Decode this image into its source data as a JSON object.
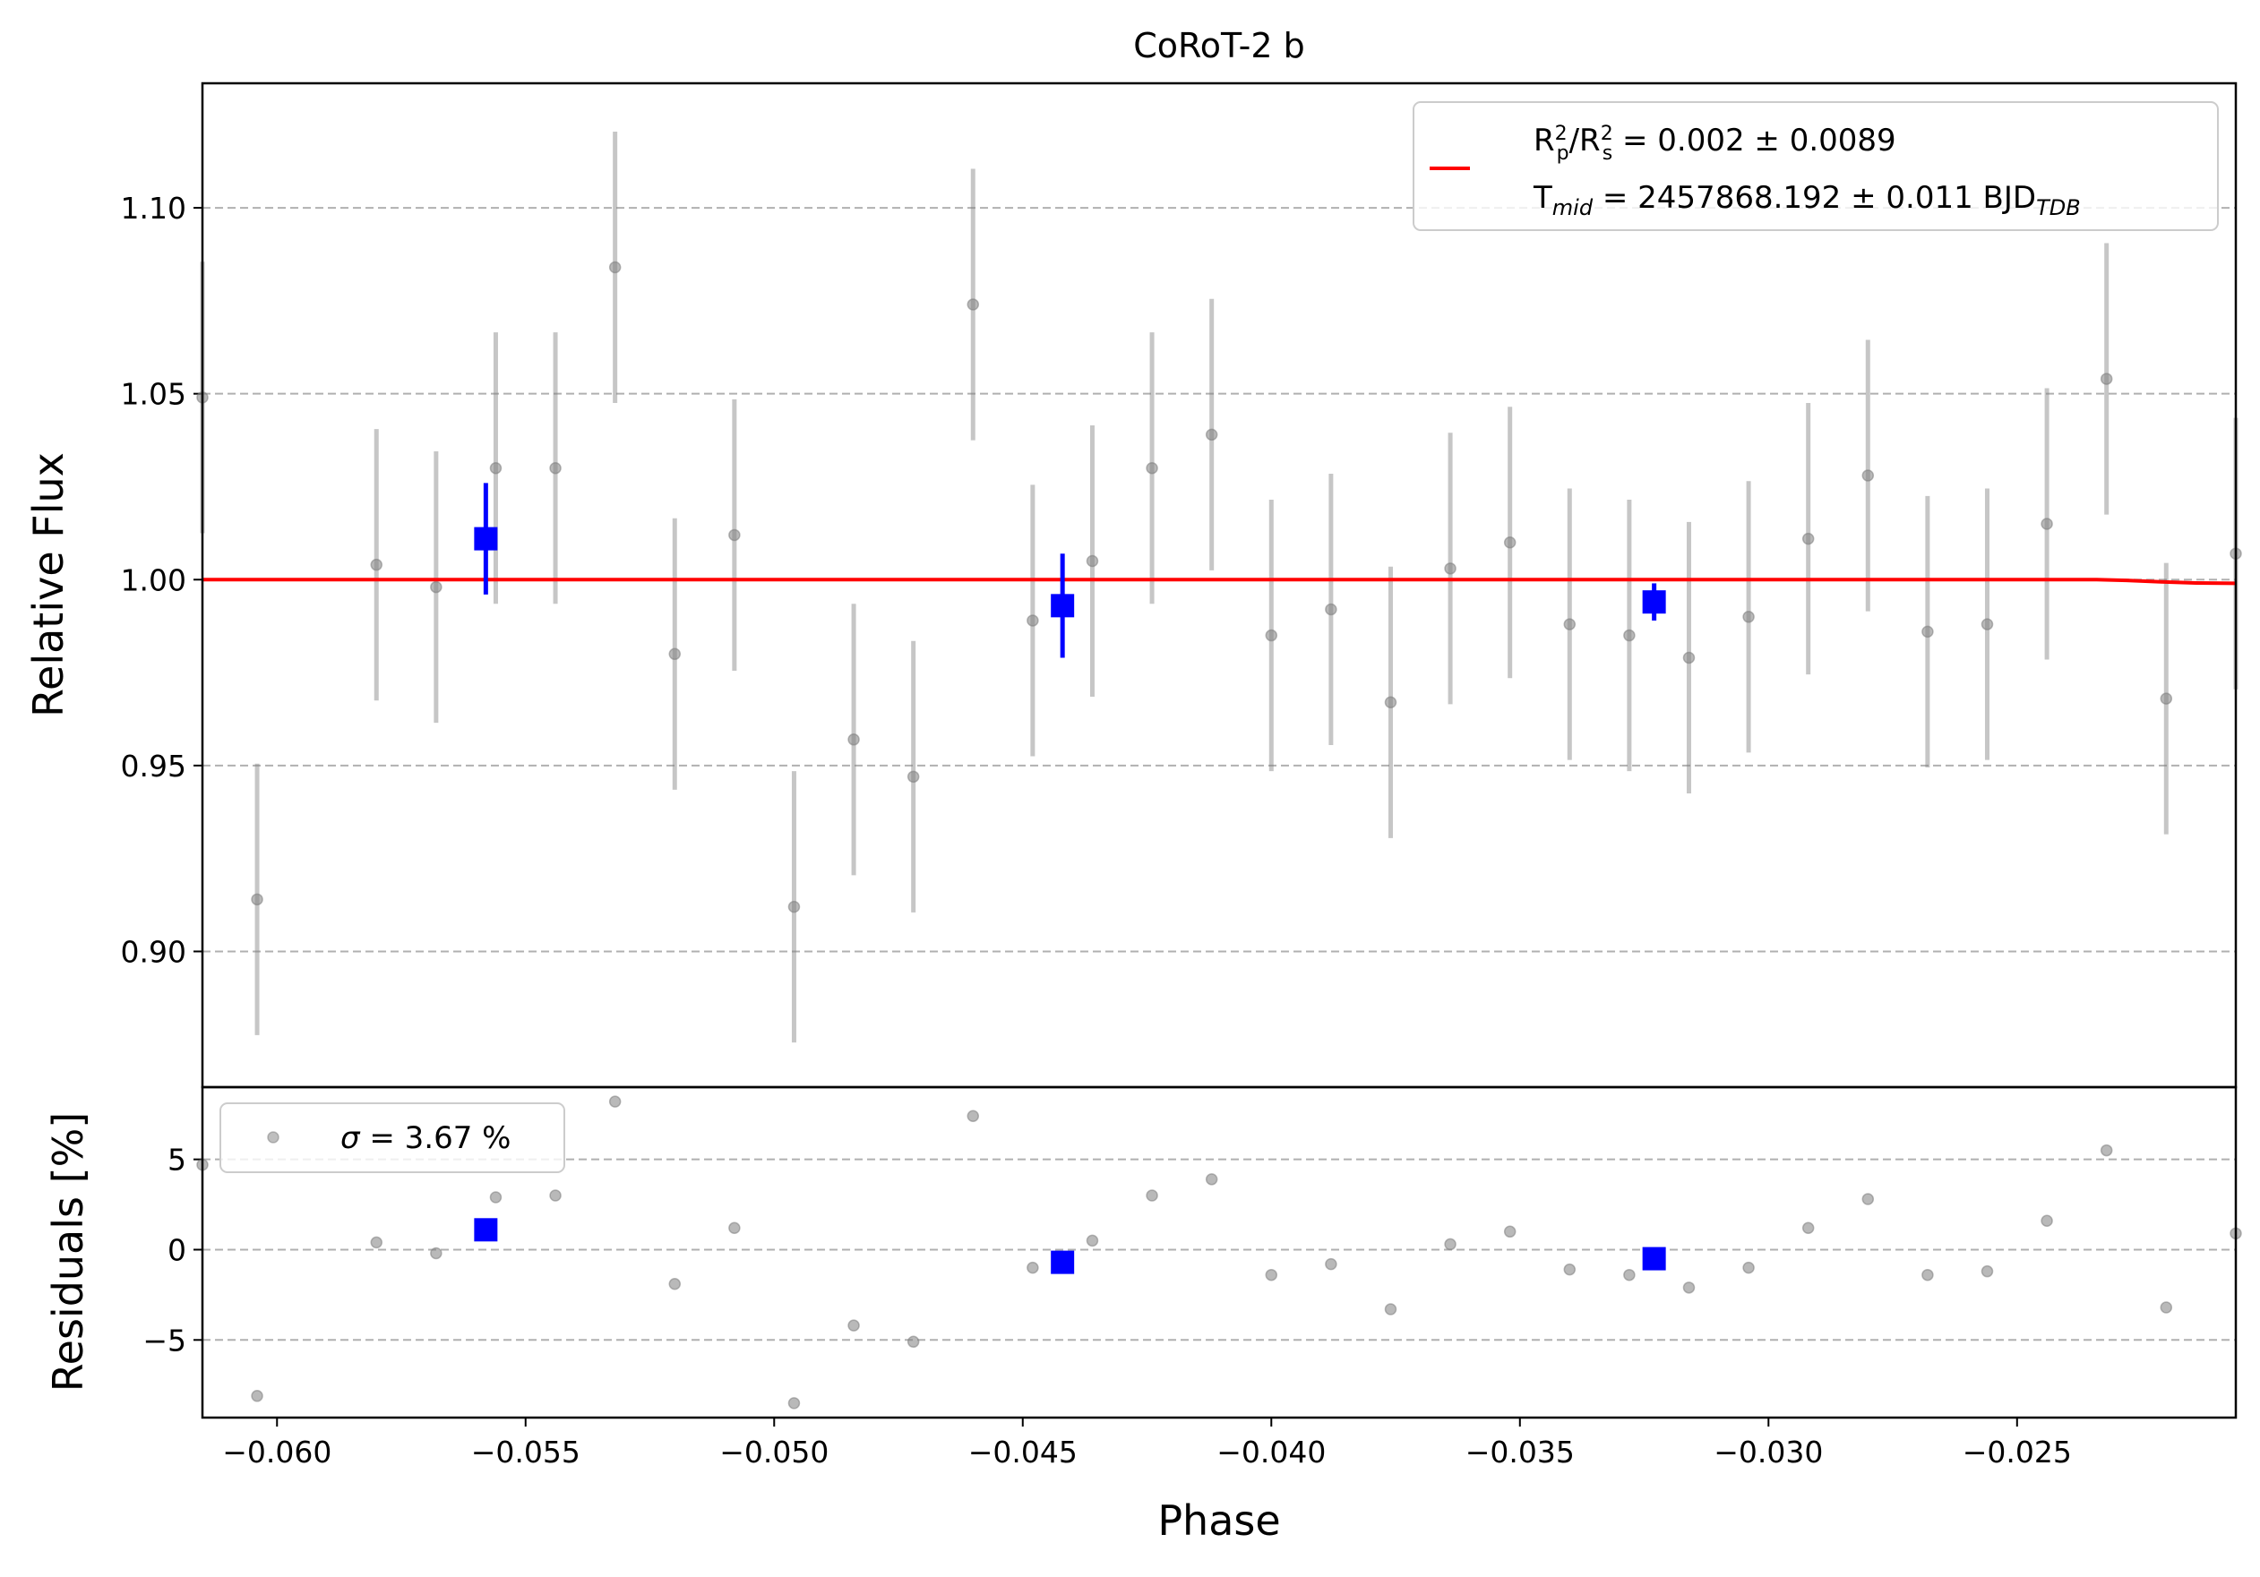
{
  "chart_data": {
    "type": "scatter",
    "title": "CoRoT-2 b",
    "xlabel": "Phase",
    "xlim": [
      -0.0615,
      -0.0206
    ],
    "x_ticks": [
      -0.06,
      -0.055,
      -0.05,
      -0.045,
      -0.04,
      -0.035,
      -0.03,
      -0.025
    ],
    "x_tick_labels": [
      "−0.060",
      "−0.055",
      "−0.050",
      "−0.045",
      "−0.040",
      "−0.035",
      "−0.030",
      "−0.025"
    ],
    "top_panel": {
      "ylabel": "Relative Flux",
      "ylim": [
        0.8635,
        1.1335
      ],
      "y_ticks": [
        0.9,
        0.95,
        1.0,
        1.05,
        1.1
      ],
      "y_tick_labels": [
        "0.90",
        "0.95",
        "1.00",
        "1.05",
        "1.10"
      ],
      "grid": "horizontal dashed",
      "legend": {
        "location": "upper right",
        "entries": [
          {
            "text_html": "R<tspan dy=\"-12\" font-size=\"22\">2</tspan><tspan dy=\"22\" dx=\"-12\" font-size=\"22\">p</tspan><tspan dy=\"-10\">/R</tspan><tspan dy=\"-12\" font-size=\"22\">2</tspan><tspan dy=\"22\" dx=\"-12\" font-size=\"22\">s</tspan><tspan dy=\"-10\"> = 0.002 ± 0.0089</tspan>"
          },
          {
            "text_html": "T<tspan dy=\"8\" font-size=\"24\" font-style=\"italic\">mid</tspan><tspan dy=\"-8\"> = 2457868.192 ± 0.011 BJD</tspan><tspan dy=\"8\" font-size=\"24\" font-style=\"italic\">TDB</tspan>"
          }
        ]
      },
      "model_line": {
        "color": "#ff0000",
        "x": [
          -0.0615,
          -0.0234,
          -0.0228,
          -0.0221,
          -0.0214,
          -0.0206
        ],
        "y": [
          1.0,
          1.0,
          0.9998,
          0.9994,
          0.9991,
          0.999
        ]
      },
      "points": {
        "color": "#808080",
        "x": [
          -0.0615,
          -0.0604,
          -0.058,
          -0.0568,
          -0.0556,
          -0.0544,
          -0.0532,
          -0.052,
          -0.0508,
          -0.0496,
          -0.0484,
          -0.0472,
          -0.046,
          -0.0448,
          -0.0436,
          -0.0424,
          -0.0412,
          -0.04,
          -0.0388,
          -0.0376,
          -0.0364,
          -0.0352,
          -0.034,
          -0.0328,
          -0.0316,
          -0.0304,
          -0.0292,
          -0.028,
          -0.0268,
          -0.0256,
          -0.0244,
          -0.0232,
          -0.022,
          -0.0206
        ],
        "y": [
          1.049,
          0.914,
          1.004,
          0.998,
          1.03,
          1.03,
          1.084,
          0.98,
          1.012,
          0.912,
          0.957,
          0.947,
          1.074,
          0.989,
          1.005,
          1.03,
          1.039,
          0.985,
          0.992,
          0.967,
          1.003,
          1.01,
          0.988,
          0.985,
          0.979,
          0.99,
          1.011,
          1.028,
          0.986,
          0.988,
          1.015,
          1.054,
          0.968,
          1.007
        ],
        "yerr": 0.0365
      },
      "binned": {
        "color": "#0000ff",
        "x": [
          -0.0558,
          -0.0442,
          -0.0323
        ],
        "y": [
          1.011,
          0.993,
          0.994
        ],
        "yerr": [
          0.015,
          0.014,
          0.005
        ]
      }
    },
    "bottom_panel": {
      "ylabel": "Residuals [%]",
      "ylim": [
        -9.3,
        9.0
      ],
      "y_ticks": [
        -5,
        0,
        5
      ],
      "y_tick_labels": [
        "−5",
        "0",
        "5"
      ],
      "grid": "horizontal dashed",
      "legend": {
        "location": "upper left",
        "entries": [
          {
            "text_html": "<tspan font-style=\"italic\">σ</tspan> = 3.67 %"
          }
        ]
      },
      "points": {
        "color": "#808080",
        "x": [
          -0.0615,
          -0.0604,
          -0.058,
          -0.0568,
          -0.0556,
          -0.0544,
          -0.0532,
          -0.052,
          -0.0508,
          -0.0496,
          -0.0484,
          -0.0472,
          -0.046,
          -0.0448,
          -0.0436,
          -0.0424,
          -0.0412,
          -0.04,
          -0.0388,
          -0.0376,
          -0.0364,
          -0.0352,
          -0.034,
          -0.0328,
          -0.0316,
          -0.0304,
          -0.0292,
          -0.028,
          -0.0268,
          -0.0256,
          -0.0244,
          -0.0232,
          -0.022,
          -0.0206
        ],
        "y": [
          4.7,
          -8.1,
          0.4,
          -0.2,
          2.9,
          3.0,
          8.2,
          -1.9,
          1.2,
          -8.5,
          -4.2,
          -5.1,
          7.4,
          -1.0,
          0.5,
          3.0,
          3.9,
          -1.4,
          -0.8,
          -3.3,
          0.3,
          1.0,
          -1.1,
          -1.4,
          -2.1,
          -1.0,
          1.2,
          2.8,
          -1.4,
          -1.2,
          1.6,
          5.5,
          -3.2,
          0.9
        ]
      },
      "binned": {
        "color": "#0000ff",
        "x": [
          -0.0558,
          -0.0442,
          -0.0323
        ],
        "y": [
          1.1,
          -0.7,
          -0.5
        ]
      }
    }
  }
}
